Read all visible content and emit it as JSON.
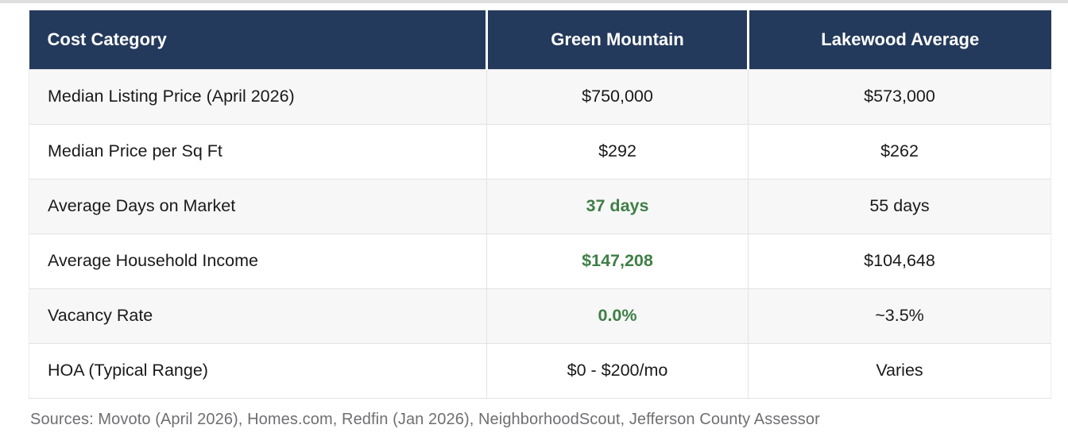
{
  "chart_data": {
    "type": "table",
    "columns": [
      "Cost Category",
      "Green Mountain",
      "Lakewood Average"
    ],
    "rows": [
      {
        "cells": [
          "Median Listing Price (April 2026)",
          "$750,000",
          "$573,000"
        ],
        "green_mountain_highlight": false
      },
      {
        "cells": [
          "Median Price per Sq Ft",
          "$292",
          "$262"
        ],
        "green_mountain_highlight": false
      },
      {
        "cells": [
          "Average Days on Market",
          "37 days",
          "55 days"
        ],
        "green_mountain_highlight": true
      },
      {
        "cells": [
          "Average Household Income",
          "$147,208",
          "$104,648"
        ],
        "green_mountain_highlight": true
      },
      {
        "cells": [
          "Vacancy Rate",
          "0.0%",
          "~3.5%"
        ],
        "green_mountain_highlight": true
      },
      {
        "cells": [
          "HOA (Typical Range)",
          "$0 - $200/mo",
          "Varies"
        ],
        "green_mountain_highlight": false
      }
    ],
    "legend_position": "none",
    "grid": "row-and-column-borders"
  },
  "footer": {
    "sources": "Sources: Movoto (April 2026), Homes.com, Redfin (Jan 2026), NeighborhoodScout, Jefferson County Assessor"
  },
  "colors": {
    "header_bg": "#243a5c",
    "header_text": "#ffffff",
    "highlight_green": "#3f7f45",
    "zebra_row_bg": "#f7f7f8",
    "border": "#e2e2e3",
    "sources_text": "#6f6f73",
    "body_text": "#1a1a1a",
    "top_strip": "#dedede"
  }
}
